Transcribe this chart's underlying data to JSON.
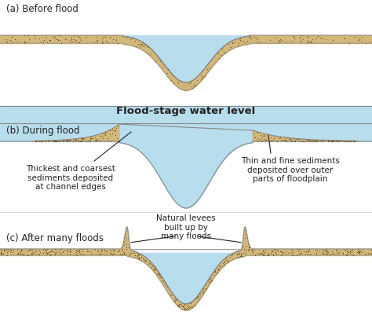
{
  "background_color": "#ffffff",
  "ground_color": "#d4b87a",
  "water_color": "#b8dded",
  "outline_color": "#888888",
  "dot_color": "#5a4a20",
  "panel_a_label": "(a) Before flood",
  "panel_b_label": "(b) During flood",
  "panel_c_label": "(c) After many floods",
  "flood_stage_label": "Flood-stage water level",
  "annotation_left": "Thickest and coarsest\nsediments deposited\nat channel edges",
  "annotation_right": "Thin and fine sediments\ndeposited over outer\nparts of floodplain",
  "annotation_levee": "Natural levees\nbuilt up by\nmany floods",
  "text_color": "#222222",
  "font_size_label": 8.5,
  "font_size_annot": 7.5,
  "font_size_flood": 9.5
}
